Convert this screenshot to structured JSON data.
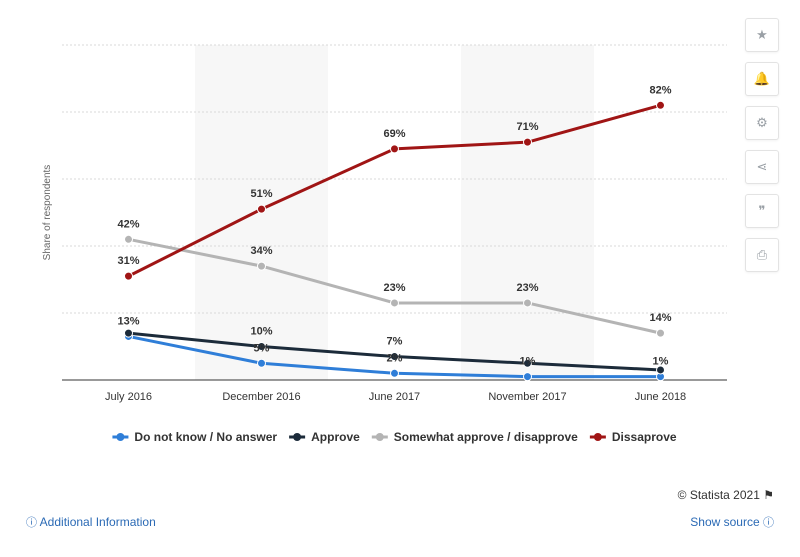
{
  "chart_data": {
    "type": "line",
    "categories": [
      "July 2016",
      "December 2016",
      "June 2017",
      "November 2017",
      "June 2018"
    ],
    "ylabel": "Share of respondents",
    "ylim": [
      0,
      100
    ],
    "grid": true,
    "legend_position": "bottom",
    "series": [
      {
        "name": "Do not know / No answer",
        "color": "#2f7ed8",
        "values": [
          13,
          5,
          2,
          1,
          1
        ],
        "labels": [
          "13%",
          "5%",
          "2%",
          "1%",
          "1%"
        ]
      },
      {
        "name": "Approve",
        "color": "#1c2b3a",
        "values": [
          14,
          10,
          7,
          5,
          3
        ],
        "labels": [
          "",
          "10%",
          "7%",
          "",
          ""
        ]
      },
      {
        "name": "Somewhat approve / disapprove",
        "color": "#b4b4b4",
        "values": [
          42,
          34,
          23,
          23,
          14
        ],
        "labels": [
          "42%",
          "34%",
          "23%",
          "23%",
          "14%"
        ]
      },
      {
        "name": "Dissaprove",
        "color": "#a01515",
        "values": [
          31,
          51,
          69,
          71,
          82
        ],
        "labels": [
          "31%",
          "51%",
          "69%",
          "71%",
          "82%"
        ]
      }
    ]
  },
  "toolbar": [
    {
      "name": "favorite-star-icon",
      "glyph": "★"
    },
    {
      "name": "notification-bell-icon",
      "glyph": "🔔"
    },
    {
      "name": "settings-gear-icon",
      "glyph": "⚙"
    },
    {
      "name": "share-icon",
      "glyph": "⋖"
    },
    {
      "name": "cite-quote-icon",
      "glyph": "❞"
    },
    {
      "name": "print-icon",
      "glyph": "⎙"
    }
  ],
  "footer": {
    "credit": "© Statista 2021",
    "flag_glyph": "⚑",
    "additional_info": "Additional Information",
    "show_source": "Show source",
    "info_glyph": "ⓘ"
  }
}
